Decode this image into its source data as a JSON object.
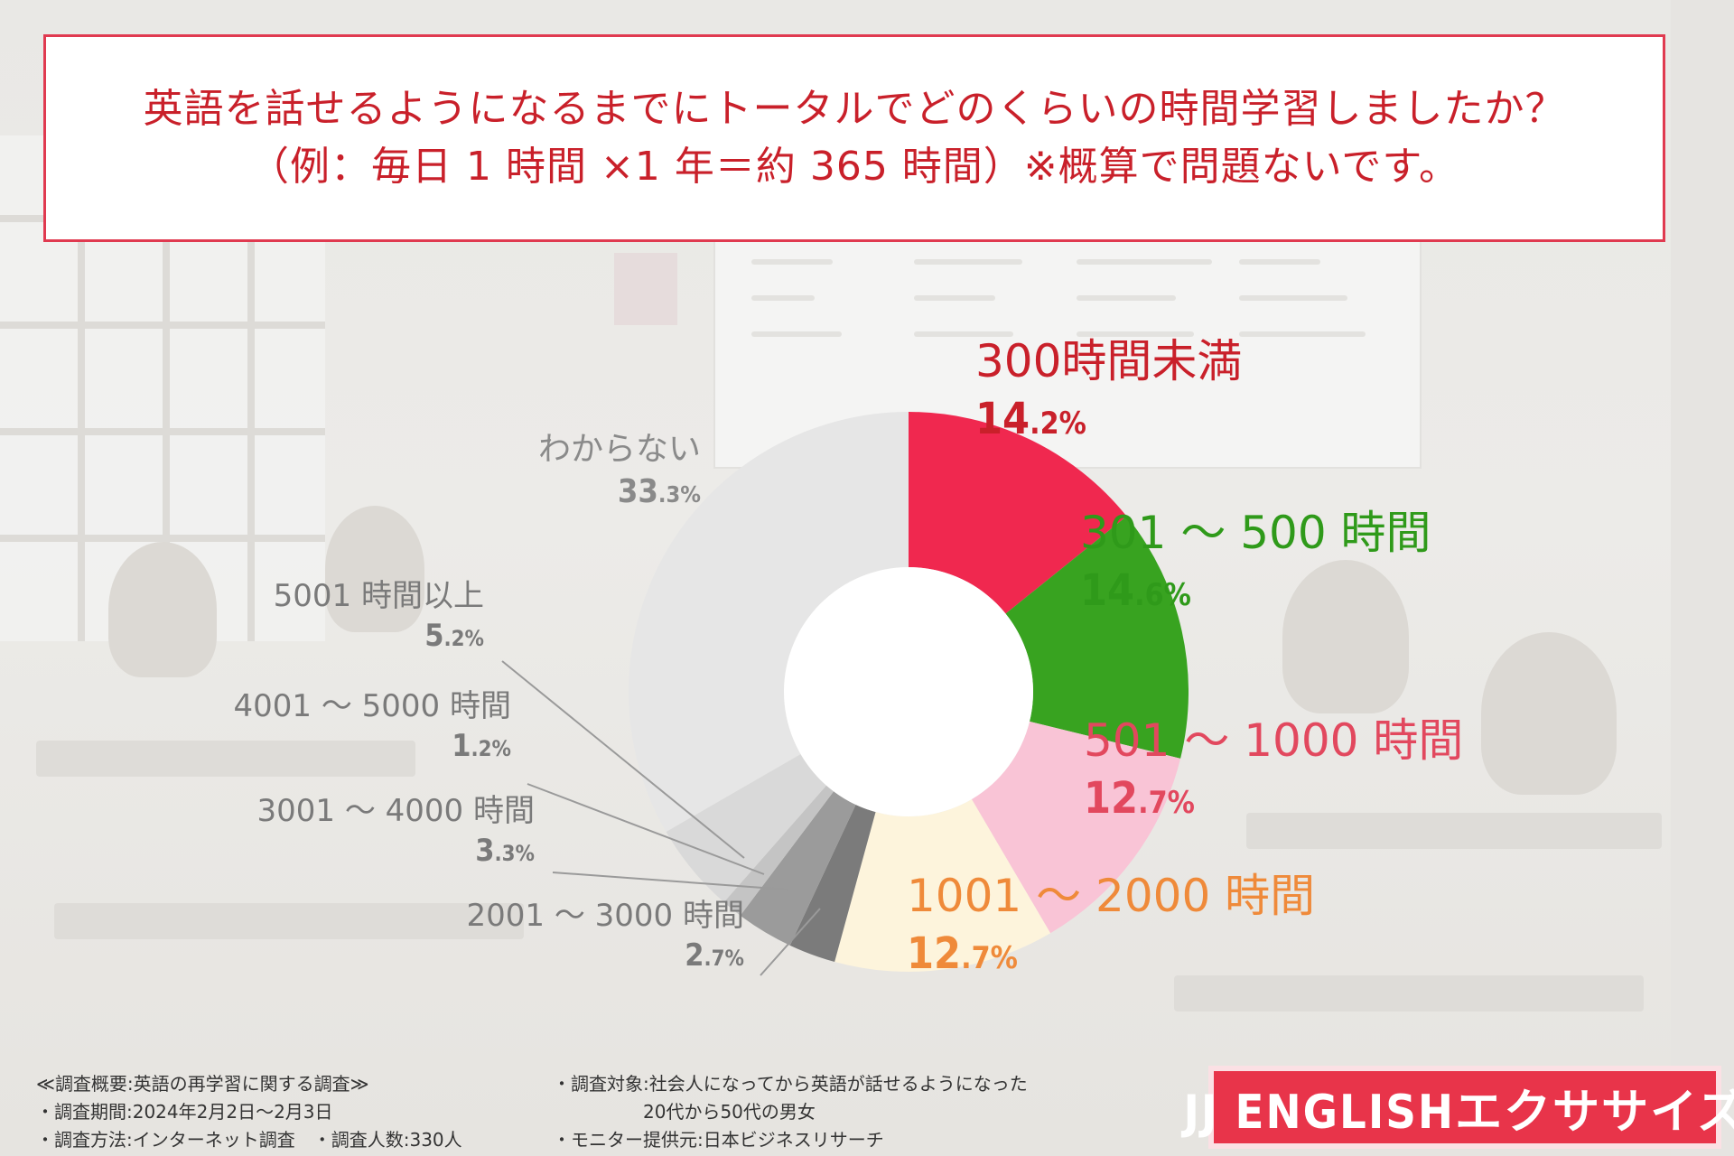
{
  "question": {
    "line1": "英語を話せるようになるまでにトータルでどのくらいの時間学習しましたか？",
    "line2": "（例：毎日 1 時間 ×1 年＝約 365 時間）※概算で問題ないです。"
  },
  "chart_data": {
    "type": "pie",
    "variant": "donut",
    "title": "",
    "start_angle": "12 o'clock",
    "direction": "clockwise",
    "slices": [
      {
        "label": "300時間未満",
        "value": 14.2,
        "display_int": "14",
        "display_dec": ".2%",
        "color": "#f0284f",
        "label_color": "#c9202a"
      },
      {
        "label": "301 ～ 500 時間",
        "value": 14.6,
        "display_int": "14",
        "display_dec": ".6%",
        "color": "#38a320",
        "label_color": "#2f9a1a"
      },
      {
        "label": "501 ～ 1000 時間",
        "value": 12.7,
        "display_int": "12",
        "display_dec": ".7%",
        "color": "#f9c4d6",
        "label_color": "#e2485e"
      },
      {
        "label": "1001 ～ 2000 時間",
        "value": 12.7,
        "display_int": "12",
        "display_dec": ".7%",
        "color": "#fdf4dc",
        "label_color": "#ef8a3a"
      },
      {
        "label": "2001 ～ 3000 時間",
        "value": 2.7,
        "display_int": "2",
        "display_dec": ".7%",
        "color": "#7b7b7b",
        "label_color": "#7a7a7a"
      },
      {
        "label": "3001 ～ 4000 時間",
        "value": 3.3,
        "display_int": "3",
        "display_dec": ".3%",
        "color": "#9b9b9b",
        "label_color": "#7a7a7a"
      },
      {
        "label": "4001 ～ 5000 時間",
        "value": 1.2,
        "display_int": "1",
        "display_dec": ".2%",
        "color": "#c4c4c4",
        "label_color": "#7a7a7a"
      },
      {
        "label": "5001 時間以上",
        "value": 5.2,
        "display_int": "5",
        "display_dec": ".2%",
        "color": "#d9d9d9",
        "label_color": "#7a7a7a"
      },
      {
        "label": "わからない",
        "value": 33.3,
        "display_int": "33",
        "display_dec": ".3%",
        "color": "#e6e6e6",
        "label_color": "#8a8a8a"
      }
    ]
  },
  "notes": {
    "left": [
      "≪調査概要:英語の再学習に関する調査≫",
      "・調査期間:2024年2月2日～2月3日",
      "・調査方法:インターネット調査　・調査人数:330人"
    ],
    "right": [
      "・調査対象:社会人になってから英語が話せるようになった",
      "　　　　　20代から50代の男女",
      "・モニター提供元:日本ビジネスリサーチ"
    ]
  },
  "logo": {
    "text": "JJ ENGLISHエクササイズ"
  }
}
